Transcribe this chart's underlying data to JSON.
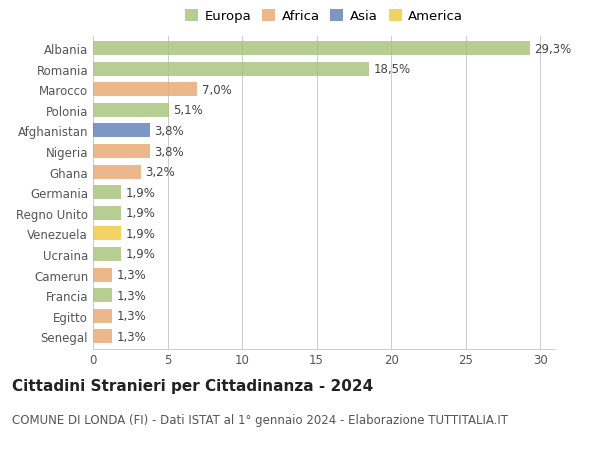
{
  "categories": [
    "Albania",
    "Romania",
    "Marocco",
    "Polonia",
    "Afghanistan",
    "Nigeria",
    "Ghana",
    "Germania",
    "Regno Unito",
    "Venezuela",
    "Ucraina",
    "Camerun",
    "Francia",
    "Egitto",
    "Senegal"
  ],
  "values": [
    29.3,
    18.5,
    7.0,
    5.1,
    3.8,
    3.8,
    3.2,
    1.9,
    1.9,
    1.9,
    1.9,
    1.3,
    1.3,
    1.3,
    1.3
  ],
  "labels": [
    "29,3%",
    "18,5%",
    "7,0%",
    "5,1%",
    "3,8%",
    "3,8%",
    "3,2%",
    "1,9%",
    "1,9%",
    "1,9%",
    "1,9%",
    "1,3%",
    "1,3%",
    "1,3%",
    "1,3%"
  ],
  "colors": [
    "#a8c47a",
    "#a8c47a",
    "#e8a870",
    "#a8c47a",
    "#6080b8",
    "#e8a870",
    "#e8a870",
    "#a8c47a",
    "#a8c47a",
    "#f0c840",
    "#a8c47a",
    "#e8a870",
    "#a8c47a",
    "#e8a870",
    "#e8a870"
  ],
  "legend_labels": [
    "Europa",
    "Africa",
    "Asia",
    "America"
  ],
  "legend_colors": [
    "#a8c47a",
    "#e8a870",
    "#6080b8",
    "#f0c840"
  ],
  "title": "Cittadini Stranieri per Cittadinanza - 2024",
  "subtitle": "COMUNE DI LONDA (FI) - Dati ISTAT al 1° gennaio 2024 - Elaborazione TUTTITALIA.IT",
  "xlim": [
    0,
    31
  ],
  "xticks": [
    0,
    5,
    10,
    15,
    20,
    25,
    30
  ],
  "background_color": "#ffffff",
  "grid_color": "#cccccc",
  "bar_height": 0.68,
  "label_fontsize": 8.5,
  "tick_fontsize": 8.5,
  "title_fontsize": 11,
  "subtitle_fontsize": 8.5,
  "legend_fontsize": 9.5
}
